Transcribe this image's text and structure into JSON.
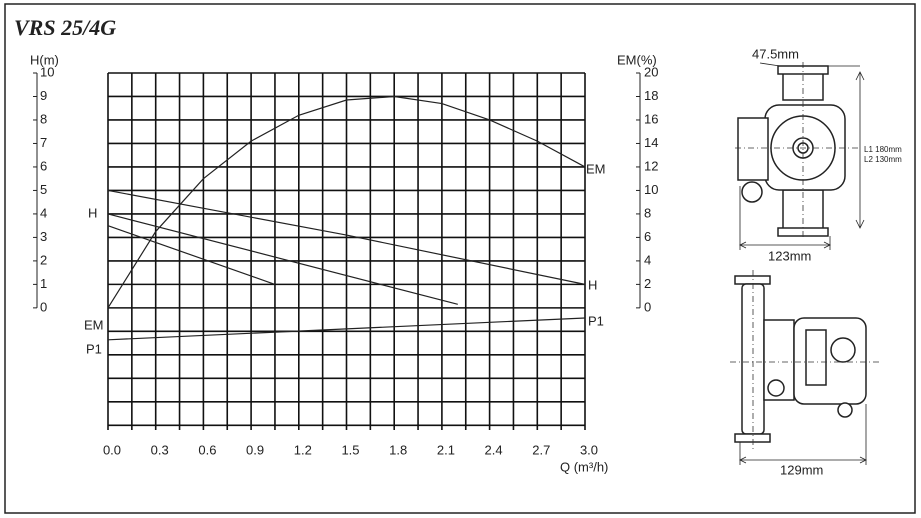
{
  "chart_data": {
    "type": "line",
    "title": "VRS 25/4G",
    "ylabel": "H(m)",
    "y2label": "EM(%)",
    "xlabel": "Q (m³/h)",
    "xlim": [
      0,
      3.0
    ],
    "xticks": [
      {
        "value": 0,
        "label": "0.0"
      },
      0.3,
      0.6,
      0.9,
      1.2,
      1.5,
      1.8,
      2.1,
      2.4,
      2.7,
      {
        "value": 3,
        "label": "3.0"
      }
    ],
    "ylim": [
      -5.2,
      10
    ],
    "yticks": [
      0,
      1,
      2,
      3,
      4,
      5,
      6,
      7,
      8,
      9,
      10
    ],
    "y2lim": [
      -10.4,
      20
    ],
    "y2ticks": [
      0,
      2,
      4,
      6,
      8,
      10,
      12,
      14,
      16,
      18,
      20
    ],
    "grid": true,
    "series": [
      {
        "name": "H",
        "color": "#222222",
        "x": [
          0,
          1.5,
          3.0
        ],
        "values": [
          5,
          3.1,
          1
        ]
      },
      {
        "color": "#222222",
        "x": [
          0,
          2.2
        ],
        "values": [
          4,
          0.15
        ]
      },
      {
        "color": "#222222",
        "x": [
          0,
          1.05
        ],
        "values": [
          3.5,
          1
        ]
      },
      {
        "name": "EM",
        "color": "#222222",
        "axis": "y2",
        "x": [
          0,
          0.3,
          0.6,
          0.9,
          1.2,
          1.5,
          1.8,
          2.1,
          2.4,
          2.7,
          3.0
        ],
        "values": [
          0,
          6.5,
          11,
          14.2,
          16.4,
          17.7,
          18,
          17.4,
          16,
          14.2,
          12
        ]
      },
      {
        "name": "P1",
        "color": "#222222",
        "x": [
          0,
          3.0
        ],
        "values": [
          -1.36,
          -0.43
        ]
      }
    ],
    "annotations": [
      "EM",
      "H",
      "P1"
    ]
  },
  "drawings": {
    "dimensions": [
      "47.5mm",
      "L1 180mm",
      "L2 130mm",
      "123mm",
      "129mm"
    ]
  }
}
